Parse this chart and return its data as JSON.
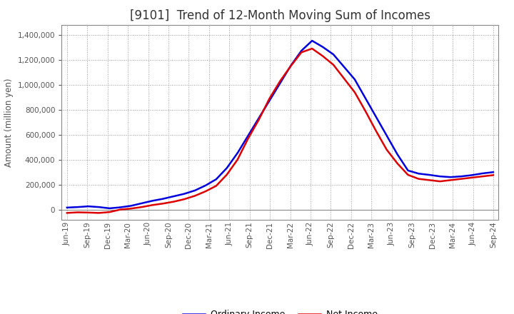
{
  "title": "[9101]  Trend of 12-Month Moving Sum of Incomes",
  "ylabel": "Amount (million yen)",
  "ylim": [
    -80000,
    1480000
  ],
  "yticks": [
    0,
    200000,
    400000,
    600000,
    800000,
    1000000,
    1200000,
    1400000
  ],
  "ordinary_income": [
    18000,
    22000,
    28000,
    22000,
    12000,
    20000,
    32000,
    52000,
    72000,
    88000,
    108000,
    128000,
    155000,
    195000,
    245000,
    335000,
    455000,
    595000,
    735000,
    875000,
    1015000,
    1155000,
    1275000,
    1355000,
    1305000,
    1245000,
    1145000,
    1045000,
    895000,
    745000,
    595000,
    445000,
    315000,
    290000,
    280000,
    268000,
    262000,
    268000,
    278000,
    292000,
    302000
  ],
  "net_income": [
    -25000,
    -20000,
    -22000,
    -25000,
    -18000,
    2000,
    10000,
    22000,
    38000,
    50000,
    65000,
    85000,
    112000,
    148000,
    192000,
    282000,
    402000,
    572000,
    722000,
    892000,
    1032000,
    1152000,
    1262000,
    1292000,
    1232000,
    1162000,
    1052000,
    942000,
    792000,
    632000,
    482000,
    372000,
    280000,
    248000,
    238000,
    228000,
    238000,
    248000,
    258000,
    268000,
    278000
  ],
  "x_labels": [
    "Jun-19",
    "Sep-19",
    "Dec-19",
    "Mar-20",
    "Jun-20",
    "Sep-20",
    "Dec-20",
    "Mar-21",
    "Jun-21",
    "Sep-21",
    "Dec-21",
    "Mar-22",
    "Jun-22",
    "Sep-22",
    "Dec-22",
    "Mar-23",
    "Jun-23",
    "Sep-23",
    "Dec-23",
    "Mar-24",
    "Jun-24",
    "Sep-24"
  ],
  "ordinary_color": "#0000dd",
  "net_color": "#dd0000",
  "line_width": 1.8,
  "background_color": "#ffffff",
  "plot_bg_color": "#ffffff",
  "grid_color": "#999999",
  "title_fontsize": 12,
  "axis_fontsize": 8.5,
  "tick_fontsize": 7.5,
  "legend_fontsize": 9
}
